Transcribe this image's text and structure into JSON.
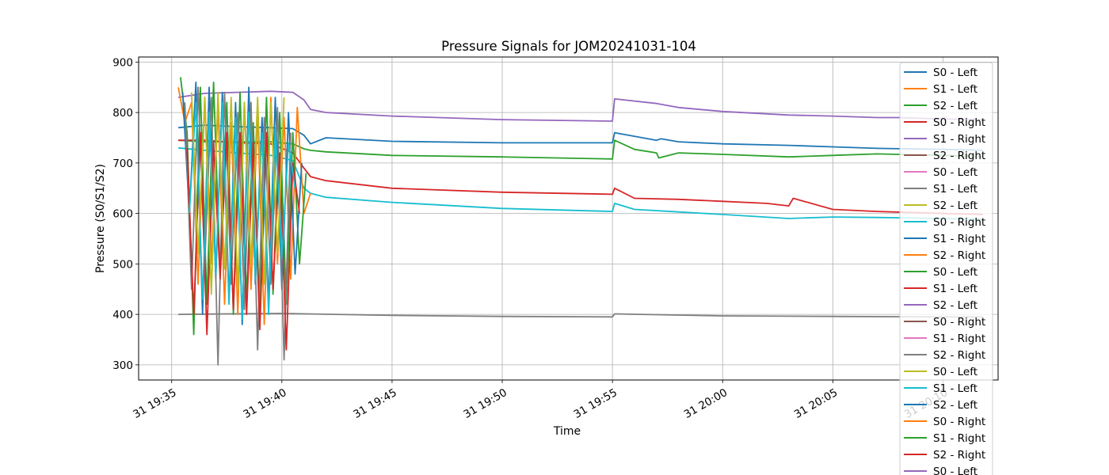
{
  "chart_data": {
    "type": "line",
    "title": "Pressure Signals for JOM20241031-104",
    "xlabel": "Time",
    "ylabel": "Pressure (S0/S1/S2)",
    "x_ticks": [
      "31 19:35",
      "31 19:40",
      "31 19:45",
      "31 19:50",
      "31 19:55",
      "31 20:00",
      "31 20:05",
      "31 20:10"
    ],
    "x_tick_minutes": [
      0,
      5,
      10,
      15,
      20,
      25,
      30,
      35
    ],
    "xlim_minutes": [
      -1.5,
      37.5
    ],
    "y_ticks": [
      300,
      400,
      500,
      600,
      700,
      800,
      900
    ],
    "ylim": [
      270,
      910
    ],
    "grid": true,
    "legend_position": "upper-right",
    "legend": [
      {
        "label": "S0 - Left",
        "color": "#1f77b4"
      },
      {
        "label": "S1 - Left",
        "color": "#ff7f0e"
      },
      {
        "label": "S2 - Left",
        "color": "#2ca02c"
      },
      {
        "label": "S0 - Right",
        "color": "#d62728"
      },
      {
        "label": "S1 - Right",
        "color": "#9467bd"
      },
      {
        "label": "S2 - Right",
        "color": "#8c564b"
      },
      {
        "label": "S0 - Left",
        "color": "#e377c2"
      },
      {
        "label": "S1 - Left",
        "color": "#7f7f7f"
      },
      {
        "label": "S2 - Left",
        "color": "#bcbd22"
      },
      {
        "label": "S0 - Right",
        "color": "#17becf"
      },
      {
        "label": "S1 - Right",
        "color": "#1f77b4"
      },
      {
        "label": "S2 - Right",
        "color": "#ff7f0e"
      },
      {
        "label": "S0 - Left",
        "color": "#2ca02c"
      },
      {
        "label": "S1 - Left",
        "color": "#d62728"
      },
      {
        "label": "S2 - Left",
        "color": "#9467bd"
      },
      {
        "label": "S0 - Right",
        "color": "#8c564b"
      },
      {
        "label": "S1 - Right",
        "color": "#e377c2"
      },
      {
        "label": "S2 - Right",
        "color": "#7f7f7f"
      },
      {
        "label": "S0 - Left",
        "color": "#bcbd22"
      },
      {
        "label": "S1 - Left",
        "color": "#17becf"
      },
      {
        "label": "S2 - Left",
        "color": "#1f77b4"
      },
      {
        "label": "S0 - Right",
        "color": "#ff7f0e"
      },
      {
        "label": "S1 - Right",
        "color": "#2ca02c"
      },
      {
        "label": "S2 - Right",
        "color": "#d62728"
      },
      {
        "label": "S0 - Left",
        "color": "#9467bd"
      }
    ],
    "series": [
      {
        "color": "#9467bd",
        "x": [
          0.3,
          1.5,
          3.0,
          4.5,
          5.5,
          6.0,
          6.3,
          7.0,
          10,
          15,
          20,
          20.1,
          22,
          23,
          25,
          28,
          30,
          32,
          33,
          35,
          36.8
        ],
        "y": [
          830,
          838,
          840,
          842,
          840,
          825,
          806,
          800,
          793,
          786,
          783,
          827,
          818,
          810,
          802,
          795,
          793,
          790,
          790,
          787,
          786
        ]
      },
      {
        "color": "#1f77b4",
        "x": [
          0.3,
          1.5,
          3.0,
          4.5,
          5.5,
          6.0,
          6.3,
          7.0,
          10,
          15,
          20,
          20.1,
          22,
          22.2,
          23,
          25,
          28,
          30,
          32,
          35,
          36.8
        ],
        "y": [
          770,
          775,
          772,
          770,
          768,
          755,
          738,
          750,
          743,
          740,
          740,
          760,
          745,
          748,
          742,
          738,
          735,
          732,
          729,
          727,
          725
        ]
      },
      {
        "color": "#2ca02c",
        "x": [
          0.3,
          1.5,
          3.0,
          4.5,
          5.5,
          6.0,
          6.3,
          7.0,
          10,
          15,
          20,
          20.1,
          21,
          22,
          22.1,
          23,
          25,
          28,
          30,
          32,
          35,
          36.8
        ],
        "y": [
          745,
          742,
          742,
          742,
          738,
          728,
          725,
          722,
          715,
          712,
          708,
          745,
          727,
          720,
          710,
          720,
          717,
          712,
          715,
          718,
          715,
          713
        ]
      },
      {
        "color": "#d62728",
        "x": [
          0.3,
          1.5,
          3.0,
          4.5,
          5.5,
          6.0,
          6.3,
          7.0,
          10,
          15,
          20,
          20.1,
          21,
          23,
          25,
          27,
          28,
          28.2,
          30,
          32,
          35,
          36.8
        ],
        "y": [
          745,
          745,
          740,
          738,
          720,
          690,
          673,
          665,
          650,
          642,
          638,
          650,
          630,
          628,
          624,
          620,
          615,
          630,
          608,
          604,
          600,
          598
        ]
      },
      {
        "color": "#17becf",
        "x": [
          0.3,
          1.5,
          3.0,
          4.5,
          5.5,
          6.0,
          6.3,
          7.0,
          10,
          15,
          20,
          20.1,
          21,
          23,
          25,
          28,
          30,
          32,
          35,
          36.8
        ],
        "y": [
          730,
          725,
          720,
          715,
          705,
          650,
          640,
          632,
          622,
          610,
          604,
          620,
          608,
          603,
          598,
          590,
          593,
          592,
          590,
          588
        ]
      },
      {
        "color": "#7f7f7f",
        "x": [
          0.3,
          5,
          10,
          15,
          20,
          20.1,
          25,
          30,
          35,
          36.8
        ],
        "y": [
          400,
          402,
          398,
          396,
          395,
          401,
          397,
          396,
          395,
          395
        ]
      },
      {
        "color": "#ff7f0e",
        "x": [
          0.3,
          0.6,
          0.9,
          1.2,
          1.5,
          1.8,
          2.1,
          2.4,
          2.7,
          3.0,
          3.3,
          3.6,
          3.9,
          4.2,
          4.5,
          4.8,
          5.1,
          5.4,
          5.7,
          6.0,
          6.3
        ],
        "y": [
          850,
          780,
          820,
          460,
          830,
          500,
          810,
          420,
          780,
          400,
          820,
          450,
          800,
          380,
          830,
          500,
          790,
          470,
          810,
          600,
          640
        ]
      },
      {
        "color": "#2ca02c",
        "x": [
          0.4,
          0.7,
          1.0,
          1.3,
          1.6,
          1.9,
          2.2,
          2.5,
          2.8,
          3.1,
          3.4,
          3.7,
          4.0,
          4.3,
          4.6,
          4.9,
          5.2,
          5.5,
          5.8,
          6.1
        ],
        "y": [
          870,
          760,
          360,
          850,
          420,
          860,
          480,
          820,
          400,
          840,
          430,
          780,
          390,
          830,
          440,
          800,
          420,
          760,
          500,
          680
        ]
      },
      {
        "color": "#1f77b4",
        "x": [
          0.5,
          0.8,
          1.1,
          1.4,
          1.7,
          2.0,
          2.3,
          2.6,
          2.9,
          3.2,
          3.5,
          3.8,
          4.1,
          4.4,
          4.7,
          5.0,
          5.3,
          5.6,
          5.9
        ],
        "y": [
          840,
          600,
          860,
          400,
          850,
          470,
          840,
          430,
          820,
          380,
          850,
          460,
          790,
          420,
          830,
          450,
          800,
          480,
          700
        ]
      },
      {
        "color": "#7f7f7f",
        "x": [
          0.6,
          0.9,
          1.2,
          1.5,
          1.8,
          2.1,
          2.4,
          2.7,
          3.0,
          3.3,
          3.6,
          3.9,
          4.2,
          4.5,
          4.8,
          5.1,
          5.4
        ],
        "y": [
          820,
          450,
          850,
          500,
          830,
          300,
          840,
          460,
          800,
          410,
          820,
          330,
          790,
          460,
          810,
          310,
          760
        ]
      },
      {
        "color": "#d62728",
        "x": [
          0.7,
          1.0,
          1.3,
          1.6,
          1.9,
          2.2,
          2.5,
          2.8,
          3.1,
          3.4,
          3.7,
          4.0,
          4.3,
          4.6,
          4.9,
          5.2,
          5.5,
          5.8
        ],
        "y": [
          730,
          400,
          760,
          360,
          740,
          470,
          760,
          410,
          760,
          400,
          740,
          370,
          760,
          450,
          720,
          330,
          700,
          600
        ]
      },
      {
        "color": "#17becf",
        "x": [
          0.8,
          1.1,
          1.4,
          1.7,
          2.0,
          2.3,
          2.6,
          2.9,
          3.2,
          3.5,
          3.8,
          4.1,
          4.4,
          4.7,
          5.0,
          5.3,
          5.6
        ],
        "y": [
          600,
          820,
          430,
          800,
          480,
          820,
          420,
          790,
          390,
          800,
          470,
          760,
          400,
          770,
          510,
          740,
          650
        ]
      },
      {
        "color": "#bcbd22",
        "x": [
          0.9,
          1.2,
          1.5,
          1.8,
          2.1,
          2.4,
          2.7,
          3.0,
          3.3,
          3.6,
          3.9,
          4.2,
          4.5,
          4.8,
          5.1
        ],
        "y": [
          840,
          520,
          830,
          440,
          840,
          490,
          830,
          450,
          820,
          500,
          830,
          460,
          820,
          520,
          830
        ]
      }
    ]
  }
}
